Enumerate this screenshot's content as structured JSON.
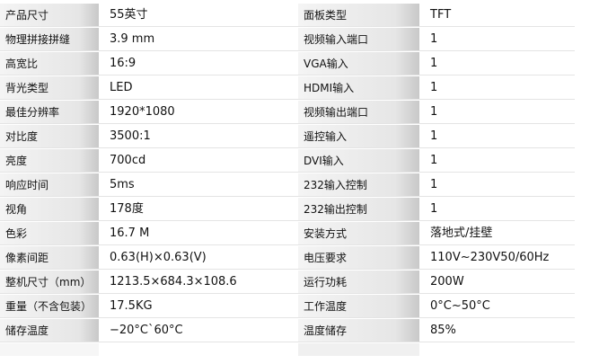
{
  "table": {
    "rows": [
      [
        "产品尺寸",
        "55英寸",
        "面板类型",
        "TFT"
      ],
      [
        "物理拼接拼缝",
        "3.9 mm",
        "视频输入端口",
        "1"
      ],
      [
        "高宽比",
        "16:9",
        "VGA输入",
        "1"
      ],
      [
        "背光类型",
        "LED",
        "HDMI输入",
        "1"
      ],
      [
        "最佳分辨率",
        "1920*1080",
        "视频输出端口",
        "1"
      ],
      [
        "对比度",
        "3500:1",
        "遥控输入",
        "1"
      ],
      [
        "亮度",
        "700cd",
        "DVI输入",
        "1"
      ],
      [
        "响应时间",
        "5ms",
        "232输入控制",
        "1"
      ],
      [
        "视角",
        "178度",
        "232输出控制",
        "1"
      ],
      [
        "色彩",
        "16.7 M",
        "安装方式",
        "落地式/挂壁"
      ],
      [
        "像素间距",
        "0.63(H)×0.63(V)",
        "电压要求",
        "110V~230V50/60Hz"
      ],
      [
        "整机尺寸（mm）",
        "1213.5×684.3×108.6",
        "运行功耗",
        "200W"
      ],
      [
        "重量（不含包装）",
        "17.5KG",
        "工作温度",
        "0°C~50°C"
      ],
      [
        "储存温度",
        "−20°C`60°C",
        "温度储存",
        "85%"
      ]
    ]
  }
}
